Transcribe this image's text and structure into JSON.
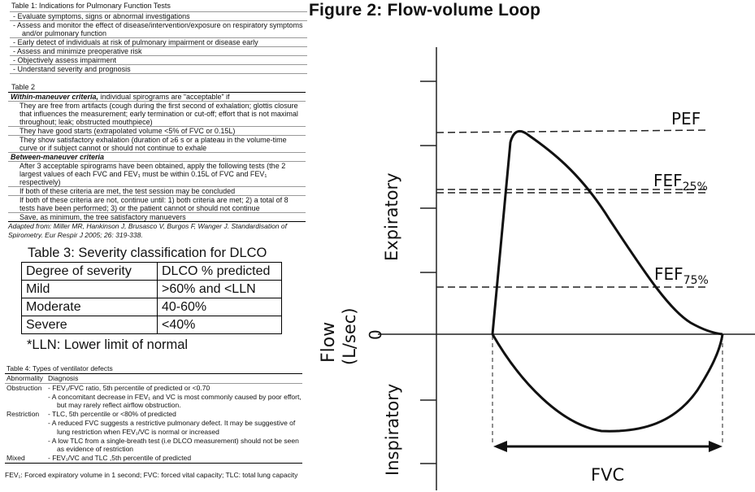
{
  "table1": {
    "caption": "Table 1: Indications for Pulmonary Function Tests",
    "rows": [
      "- Evaluate symptoms, signs or abnormal investigations",
      "- Assess and monitor the effect of disease/intervention/exposure on respiratory symptoms and/or pulmonary function",
      "- Early detect of individuals at risk of pulmonary impairment or disease early",
      "- Assess and minimize preoperative risk",
      "- Objectively assess impairment",
      "- Understand severity and prognosis"
    ]
  },
  "table2": {
    "caption": "Table 2",
    "within_header_bold": "Within-maneuver criteria,",
    "within_header_rest": " individual spirograms are “acceptable” if",
    "within_rows": [
      "They are free from artifacts (cough during the first second of exhalation; glottis closure that influences the measurement; early termination or cut-off; effort that is not maximal throughout; leak; obstructed mouthpiece)",
      "They have good starts (extrapolated volume <5% of FVC or 0.15L)",
      "They show satisfactory exhalation (duration of ≥6 s or a plateau in the volume-time curve or if subject cannot or should not continue to exhale"
    ],
    "between_header": "Between-maneuver criteria",
    "between_rows": [
      "After 3 acceptable spirograms have been obtained, apply the following tests (the 2 largest values of each FVC and FEV₁ must be within 0.15L of FVC and FEV₁ respectively)",
      "If both of these criteria are met, the test session may be concluded",
      "If both of these criteria are not, continue until: 1) both criteria are met; 2) a total of 8 tests have been performed; 3) or the patient cannot or should not continue",
      "Save, as minimum, the tree satisfactory manuevers"
    ],
    "footnote": "Adapted from: Miller MR, Hankinson J, Brusasco V, Burgos F, Wanger J. Standardisation of Spirometry. Eur Respir J 2005; 26: 319-338."
  },
  "table3": {
    "caption": "Table 3: Severity classification for DLCO",
    "header": [
      "Degree of severity",
      "DLCO % predicted"
    ],
    "rows": [
      [
        "Mild",
        ">60% and <LLN"
      ],
      [
        "Moderate",
        "40-60%"
      ],
      [
        "Severe",
        "<40%"
      ]
    ],
    "note": "*LLN: Lower limit of normal"
  },
  "table4": {
    "caption": "Table 4: Types of ventilator defects",
    "header": [
      "Abnormality",
      "Diagnosis"
    ],
    "obstruction_label": "Obstruction",
    "obstruction_items": [
      "- FEV₁/FVC ratio, 5th percentile of predicted or <0.70",
      "- A concomitant decrease in FEV₁ and VC is most commonly caused by poor effort, but may rarely reflect airflow obstruction."
    ],
    "restriction_label": "Restriction",
    "restriction_items": [
      "- TLC, 5th percentile or <80% of predicted",
      "- A reduced FVC suggests a restrictive pulmonary defect. It may be suggestive of lung restriction when FEV₁/VC is normal or increased",
      "- A low TLC from a single-breath test (i.e DLCO measurement) should not be seen as evidence of restriction"
    ],
    "mixed_label": "Mixed",
    "mixed_items": [
      "- FEV₁/VC and TLC ,5th percentile of predicted"
    ],
    "footnote": "FEV₁: Forced expiratory volume in 1 second; FVC: forced vital capacity; TLC: total lung capacity"
  },
  "figure": {
    "title": "Figure 2: Flow-volume Loop",
    "labels": {
      "pef": "PEF",
      "fef25_main": "FEF",
      "fef25_sub": "25%",
      "fef75_main": "FEF",
      "fef75_sub": "75%",
      "fvc": "FVC",
      "expiratory": "Expiratory",
      "inspiratory": "Inspiratory",
      "flow": "Flow",
      "units": "(L/sec)",
      "zero": "0"
    }
  }
}
